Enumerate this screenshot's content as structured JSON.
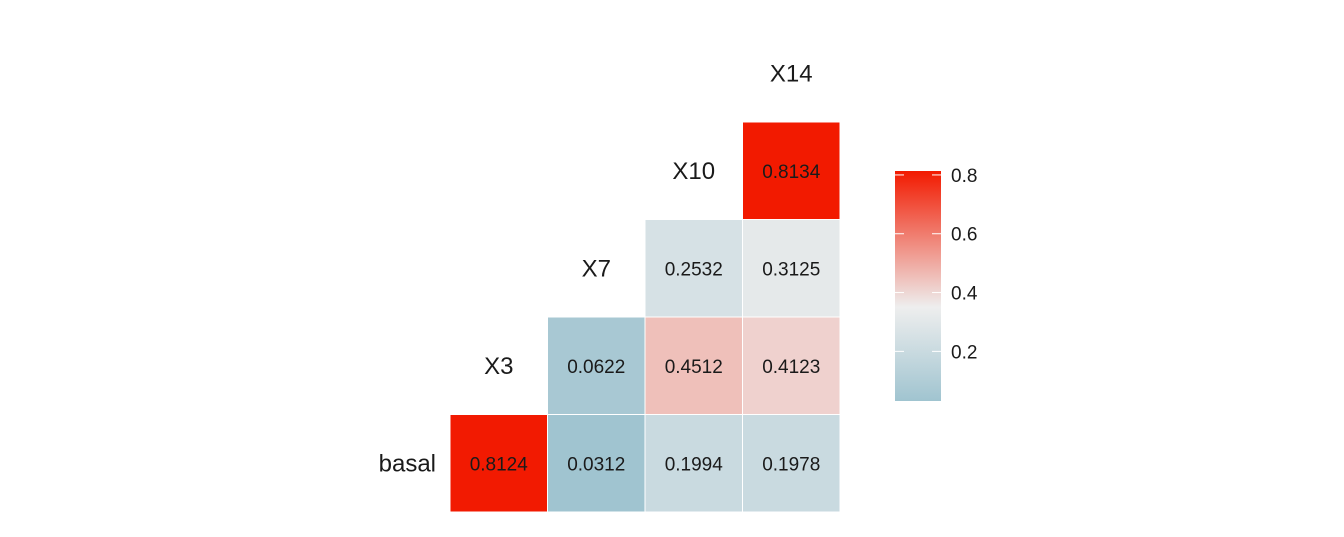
{
  "chart_data": {
    "type": "heatmap",
    "variables": [
      "basal",
      "X3",
      "X7",
      "X10",
      "X14"
    ],
    "rows": [
      "basal",
      "X3",
      "X7",
      "X10"
    ],
    "columns": [
      "X3",
      "X7",
      "X10",
      "X14"
    ],
    "cells": [
      {
        "row": "basal",
        "col": "X3",
        "value": 0.8124,
        "label": "0.8124"
      },
      {
        "row": "basal",
        "col": "X7",
        "value": 0.0312,
        "label": "0.0312"
      },
      {
        "row": "basal",
        "col": "X10",
        "value": 0.1994,
        "label": "0.1994"
      },
      {
        "row": "basal",
        "col": "X14",
        "value": 0.1978,
        "label": "0.1978"
      },
      {
        "row": "X3",
        "col": "X7",
        "value": 0.0622,
        "label": "0.0622"
      },
      {
        "row": "X3",
        "col": "X10",
        "value": 0.4512,
        "label": "0.4512"
      },
      {
        "row": "X3",
        "col": "X14",
        "value": 0.4123,
        "label": "0.4123"
      },
      {
        "row": "X7",
        "col": "X10",
        "value": 0.2532,
        "label": "0.2532"
      },
      {
        "row": "X7",
        "col": "X14",
        "value": 0.3125,
        "label": "0.3125"
      },
      {
        "row": "X10",
        "col": "X14",
        "value": 0.8134,
        "label": "0.8134"
      }
    ],
    "color_scale": {
      "min": 0.0312,
      "mid": 0.35,
      "max": 0.8134,
      "low_color": "#a0c4d0",
      "mid_color": "#eeeeee",
      "high_color": "#f21a00"
    },
    "legend": {
      "position": "right",
      "ticks": [
        "0.2",
        "0.4",
        "0.6",
        "0.8"
      ]
    },
    "grid": false
  }
}
